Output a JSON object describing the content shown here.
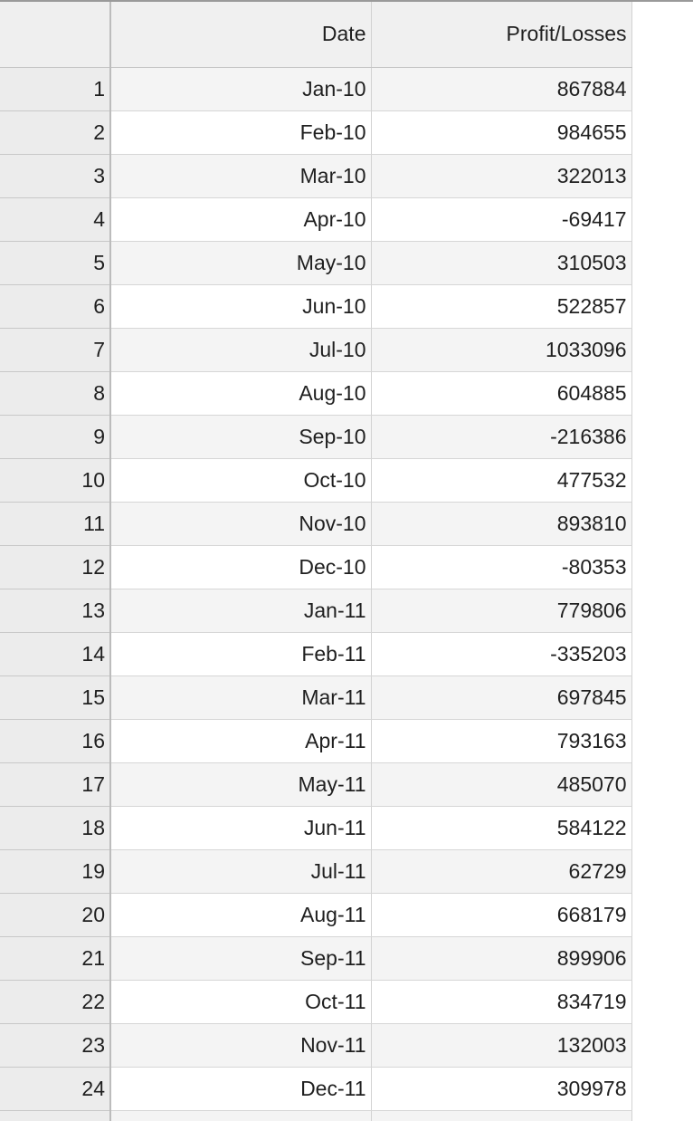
{
  "sheet": {
    "columns": [
      "",
      "Date",
      "Profit/Losses"
    ],
    "rows": [
      {
        "n": "1",
        "date": "Jan-10",
        "value": "867884"
      },
      {
        "n": "2",
        "date": "Feb-10",
        "value": "984655"
      },
      {
        "n": "3",
        "date": "Mar-10",
        "value": "322013"
      },
      {
        "n": "4",
        "date": "Apr-10",
        "value": "-69417"
      },
      {
        "n": "5",
        "date": "May-10",
        "value": "310503"
      },
      {
        "n": "6",
        "date": "Jun-10",
        "value": "522857"
      },
      {
        "n": "7",
        "date": "Jul-10",
        "value": "1033096"
      },
      {
        "n": "8",
        "date": "Aug-10",
        "value": "604885"
      },
      {
        "n": "9",
        "date": "Sep-10",
        "value": "-216386"
      },
      {
        "n": "10",
        "date": "Oct-10",
        "value": "477532"
      },
      {
        "n": "11",
        "date": "Nov-10",
        "value": "893810"
      },
      {
        "n": "12",
        "date": "Dec-10",
        "value": "-80353"
      },
      {
        "n": "13",
        "date": "Jan-11",
        "value": "779806"
      },
      {
        "n": "14",
        "date": "Feb-11",
        "value": "-335203"
      },
      {
        "n": "15",
        "date": "Mar-11",
        "value": "697845"
      },
      {
        "n": "16",
        "date": "Apr-11",
        "value": "793163"
      },
      {
        "n": "17",
        "date": "May-11",
        "value": "485070"
      },
      {
        "n": "18",
        "date": "Jun-11",
        "value": "584122"
      },
      {
        "n": "19",
        "date": "Jul-11",
        "value": "62729"
      },
      {
        "n": "20",
        "date": "Aug-11",
        "value": "668179"
      },
      {
        "n": "21",
        "date": "Sep-11",
        "value": "899906"
      },
      {
        "n": "22",
        "date": "Oct-11",
        "value": "834719"
      },
      {
        "n": "23",
        "date": "Nov-11",
        "value": "132003"
      },
      {
        "n": "24",
        "date": "Dec-11",
        "value": "309978"
      }
    ]
  }
}
